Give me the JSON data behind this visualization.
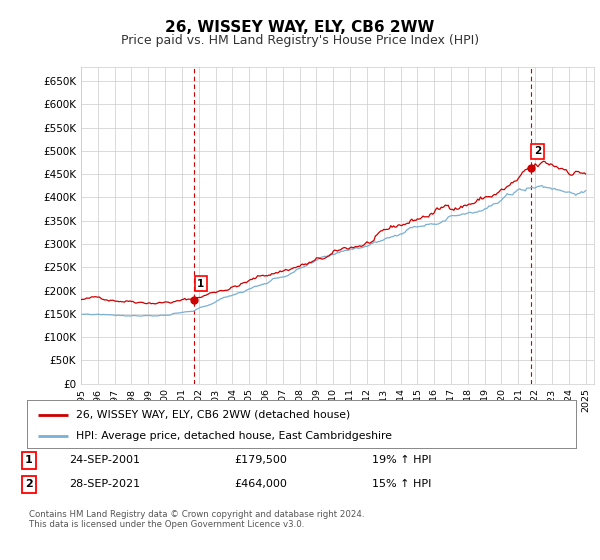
{
  "title": "26, WISSEY WAY, ELY, CB6 2WW",
  "subtitle": "Price paid vs. HM Land Registry's House Price Index (HPI)",
  "ylabel_ticks": [
    0,
    50000,
    100000,
    150000,
    200000,
    250000,
    300000,
    350000,
    400000,
    450000,
    500000,
    550000,
    600000,
    650000
  ],
  "ylim": [
    0,
    680000
  ],
  "xlim_start": 1995.0,
  "xlim_end": 2025.5,
  "xtick_years": [
    1995,
    1996,
    1997,
    1998,
    1999,
    2000,
    2001,
    2002,
    2003,
    2004,
    2005,
    2006,
    2007,
    2008,
    2009,
    2010,
    2011,
    2012,
    2013,
    2014,
    2015,
    2016,
    2017,
    2018,
    2019,
    2020,
    2021,
    2022,
    2023,
    2024,
    2025
  ],
  "line1_color": "#cc0000",
  "line2_color": "#7ab0d4",
  "marker1_date": 2001.73,
  "marker1_value": 179500,
  "marker2_date": 2021.73,
  "marker2_value": 464000,
  "legend_line1": "26, WISSEY WAY, ELY, CB6 2WW (detached house)",
  "legend_line2": "HPI: Average price, detached house, East Cambridgeshire",
  "annotation1_date": "24-SEP-2001",
  "annotation1_price": "£179,500",
  "annotation1_hpi": "19% ↑ HPI",
  "annotation2_date": "28-SEP-2021",
  "annotation2_price": "£464,000",
  "annotation2_hpi": "15% ↑ HPI",
  "footnote": "Contains HM Land Registry data © Crown copyright and database right 2024.\nThis data is licensed under the Open Government Licence v3.0.",
  "background_color": "#ffffff",
  "grid_color": "#cccccc",
  "title_fontsize": 11,
  "subtitle_fontsize": 9
}
